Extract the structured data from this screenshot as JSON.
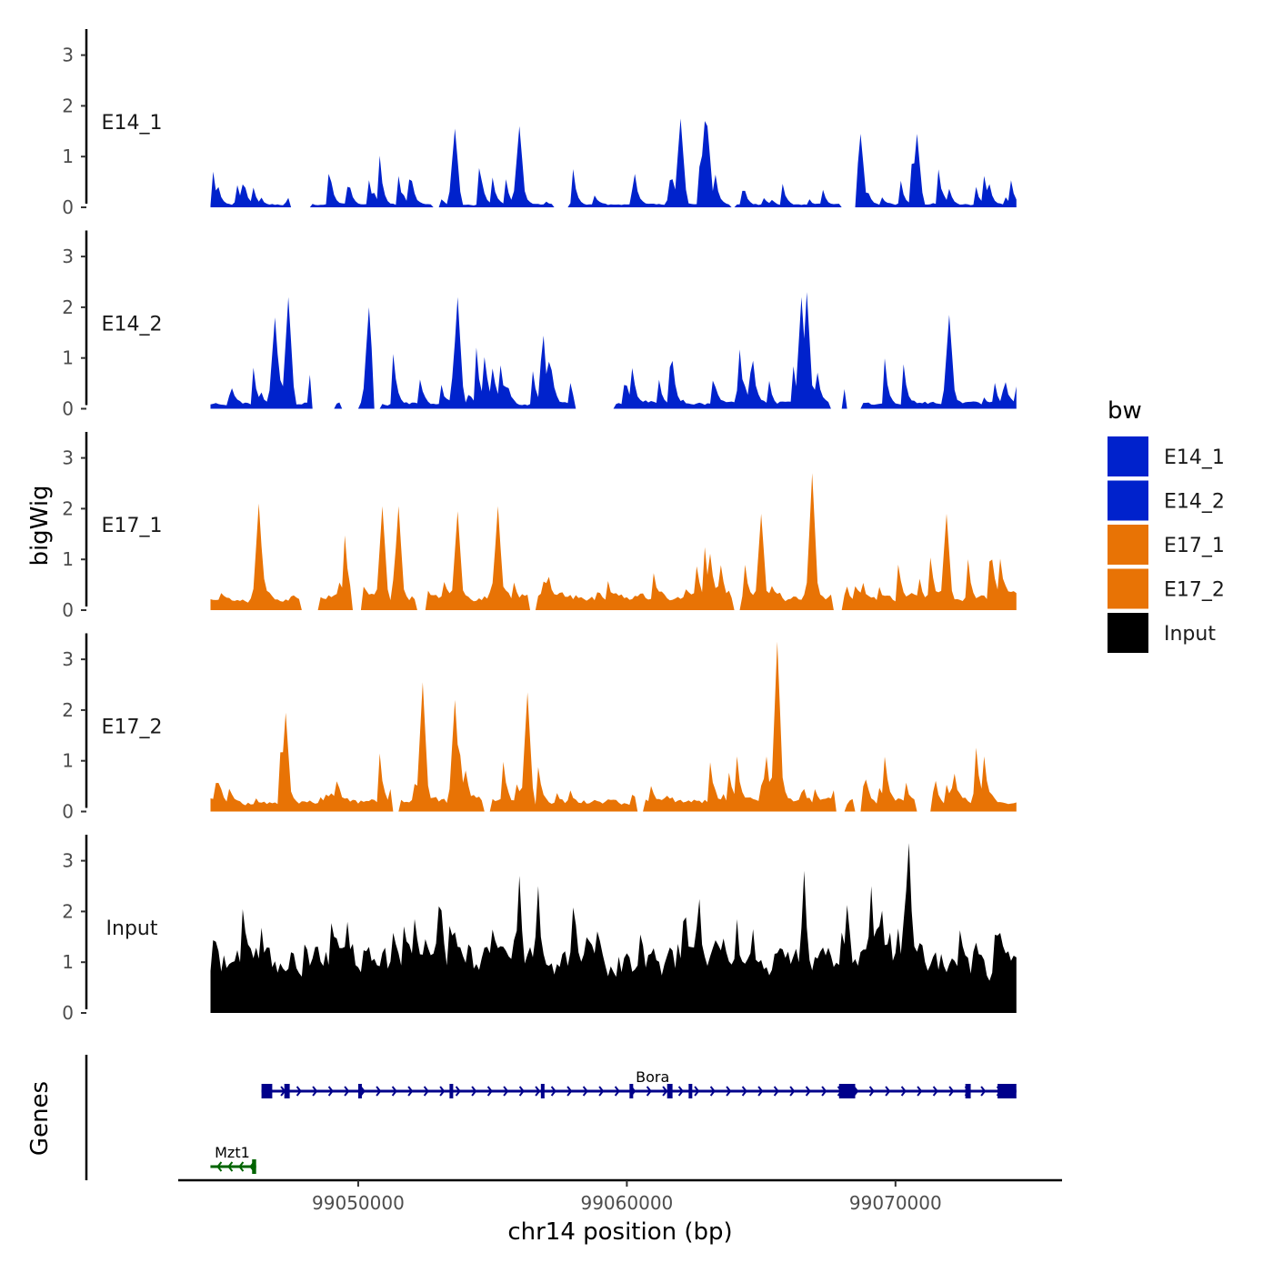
{
  "chart_data": {
    "type": "area",
    "title": "",
    "ylabel": "bigWig",
    "genes_label": "Genes",
    "xlabel": "chr14 position (bp)",
    "region": {
      "chrom": "chr14",
      "start": 99044500,
      "end": 99074500
    },
    "xlim": [
      99043300,
      99076200
    ],
    "ylim": [
      0,
      3.5
    ],
    "x_ticks": [
      99050000,
      99060000,
      99070000
    ],
    "x_tick_labels": [
      "99050000",
      "99060000",
      "99070000"
    ],
    "y_ticks": [
      0,
      1,
      2,
      3
    ],
    "y_tick_labels": [
      "0",
      "1",
      "2",
      "3"
    ],
    "legend": {
      "title": "bw",
      "entries": [
        {
          "name": "E14_1",
          "color": "#0022CC"
        },
        {
          "name": "E14_2",
          "color": "#0022CC"
        },
        {
          "name": "E17_1",
          "color": "#E87305"
        },
        {
          "name": "E17_2",
          "color": "#E87305"
        },
        {
          "name": "Input",
          "color": "#000000"
        }
      ]
    },
    "bin_size_bp": 100,
    "tracks": [
      {
        "name": "E14_1",
        "color": "#0022CC",
        "seed": 11,
        "base": 0.05,
        "spike_prob": 0.22,
        "spike_scale": 0.9,
        "peaks": [
          [
            99056000,
            1.6
          ],
          [
            99062000,
            1.75
          ],
          [
            99062900,
            1.7
          ],
          [
            99063000,
            1.6
          ],
          [
            99053600,
            1.55
          ],
          [
            99068700,
            1.45
          ],
          [
            99070800,
            1.45
          ]
        ],
        "gaps": [
          [
            99047500,
            99048200
          ],
          [
            99052800,
            99053000
          ],
          [
            99057300,
            99057800
          ],
          [
            99063900,
            99064000
          ],
          [
            99068000,
            99068500
          ]
        ]
      },
      {
        "name": "E14_2",
        "color": "#0022CC",
        "seed": 23,
        "base": 0.1,
        "spike_prob": 0.25,
        "spike_scale": 1.0,
        "peaks": [
          [
            99047400,
            2.2
          ],
          [
            99053700,
            2.2
          ],
          [
            99066700,
            2.3
          ],
          [
            99066500,
            2.2
          ],
          [
            99050400,
            2.0
          ],
          [
            99072000,
            1.85
          ],
          [
            99046900,
            1.8
          ]
        ],
        "gaps": [
          [
            99048300,
            99049100
          ],
          [
            99049400,
            99050000
          ],
          [
            99050600,
            99050800
          ],
          [
            99058100,
            99059500
          ],
          [
            99067600,
            99068000
          ],
          [
            99068200,
            99068700
          ]
        ]
      },
      {
        "name": "E17_1",
        "color": "#E87305",
        "seed": 37,
        "base": 0.25,
        "spike_prob": 0.2,
        "spike_scale": 1.0,
        "peaks": [
          [
            99046300,
            2.1
          ],
          [
            99050900,
            2.05
          ],
          [
            99051500,
            2.05
          ],
          [
            99053700,
            1.95
          ],
          [
            99055200,
            2.05
          ],
          [
            99066900,
            2.7
          ],
          [
            99065000,
            1.9
          ],
          [
            99071900,
            1.9
          ]
        ],
        "gaps": [
          [
            99047900,
            99048500
          ],
          [
            99049800,
            99050100
          ],
          [
            99052200,
            99052500
          ],
          [
            99056400,
            99056600
          ],
          [
            99064000,
            99064200
          ],
          [
            99067700,
            99068000
          ]
        ]
      },
      {
        "name": "E17_2",
        "color": "#E87305",
        "seed": 53,
        "base": 0.2,
        "spike_prob": 0.22,
        "spike_scale": 1.05,
        "peaks": [
          [
            99052400,
            2.55
          ],
          [
            99056300,
            2.35
          ],
          [
            99065600,
            3.35
          ],
          [
            99053600,
            2.2
          ],
          [
            99047300,
            1.95
          ]
        ],
        "gaps": [
          [
            99051300,
            99051500
          ],
          [
            99054700,
            99054900
          ],
          [
            99060400,
            99060600
          ],
          [
            99067800,
            99068100
          ],
          [
            99068500,
            99068700
          ],
          [
            99070800,
            99071300
          ]
        ]
      },
      {
        "name": "Input",
        "color": "#000000",
        "seed": 71,
        "base": 0.95,
        "spike_prob": 0.32,
        "spike_scale": 0.95,
        "peaks": [
          [
            99070500,
            3.35
          ],
          [
            99056000,
            2.7
          ],
          [
            99066600,
            2.8
          ],
          [
            99056700,
            2.5
          ],
          [
            99069100,
            2.5
          ],
          [
            99053000,
            2.1
          ]
        ],
        "gaps": []
      }
    ],
    "genes": [
      {
        "name": "Bora",
        "start": 99046400,
        "end": 99074500,
        "strand": "+",
        "color": "#00008B",
        "exons": [
          [
            99046400,
            99046800
          ],
          [
            99047250,
            99047450
          ],
          [
            99050000,
            99050100
          ],
          [
            99053400,
            99053500
          ],
          [
            99056800,
            99056900
          ],
          [
            99060100,
            99060200
          ],
          [
            99061500,
            99061700
          ],
          [
            99062300,
            99062400
          ],
          [
            99067900,
            99068500
          ],
          [
            99072600,
            99072800
          ],
          [
            99073800,
            99074500
          ]
        ]
      },
      {
        "name": "Mzt1",
        "start": 99044500,
        "end": 99046200,
        "strand": "-",
        "color": "#006400",
        "exons": [
          [
            99046050,
            99046200
          ]
        ]
      }
    ]
  }
}
